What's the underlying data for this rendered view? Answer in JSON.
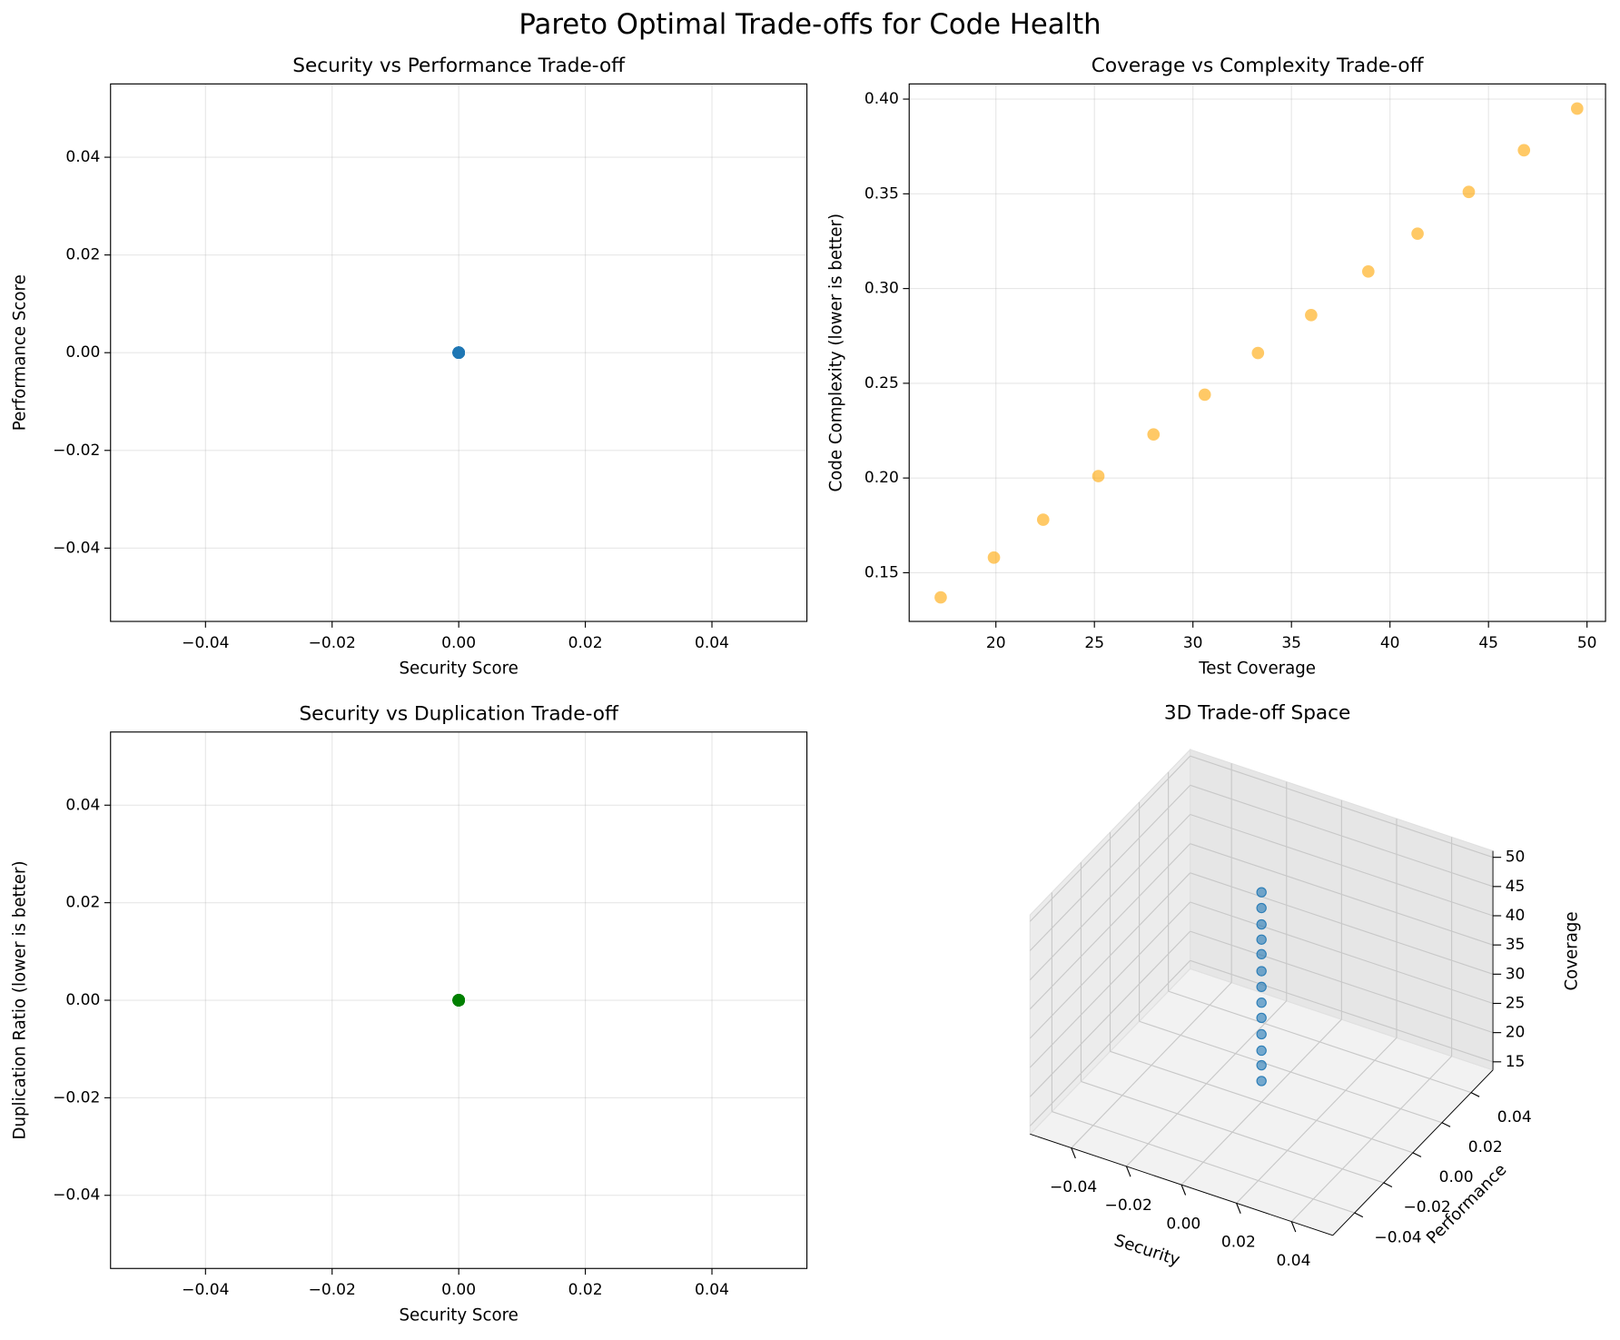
{
  "title": "Pareto Optimal Trade-offs for Code Health",
  "chart_data": [
    {
      "type": "scatter",
      "title": "Security vs Performance Trade-off",
      "xlabel": "Security Score",
      "ylabel": "Performance Score",
      "x": [
        0,
        0,
        0,
        0,
        0,
        0,
        0,
        0,
        0,
        0,
        0,
        0,
        0
      ],
      "values": [
        0,
        0,
        0,
        0,
        0,
        0,
        0,
        0,
        0,
        0,
        0,
        0,
        0
      ],
      "color": "#1f77b4",
      "alpha": 1,
      "grid": true,
      "xlim": [
        -0.055,
        0.055
      ],
      "ylim": [
        -0.055,
        0.055
      ],
      "xticks": [
        {
          "value": -0.04,
          "label": "−0.04"
        },
        {
          "value": -0.02,
          "label": "−0.02"
        },
        {
          "value": 0,
          "label": "0.00"
        },
        0.02,
        0.04
      ],
      "yticks": [
        {
          "value": -0.04,
          "label": "−0.04"
        },
        {
          "value": -0.02,
          "label": "−0.02"
        },
        {
          "value": 0,
          "label": "0.00"
        },
        0.02,
        0.04
      ]
    },
    {
      "type": "scatter",
      "title": "Coverage vs Complexity Trade-off",
      "xlabel": "Test Coverage",
      "ylabel": "Code Complexity (lower is better)",
      "x": [
        17.2,
        19.9,
        22.4,
        25.2,
        28.0,
        30.6,
        33.3,
        36.0,
        38.9,
        41.4,
        44.0,
        46.8,
        49.5
      ],
      "values": [
        0.137,
        0.158,
        0.178,
        0.201,
        0.223,
        0.244,
        0.266,
        0.286,
        0.309,
        0.329,
        0.351,
        0.373,
        0.395
      ],
      "color": "#ffa500",
      "alpha": 0.6,
      "grid": true,
      "xlim": [
        15.6,
        50.94
      ],
      "ylim": [
        0.1243,
        0.408
      ],
      "xticks": [
        20,
        25,
        30,
        35,
        40,
        45,
        50
      ],
      "yticks": [
        0.15,
        {
          "value": 0.2,
          "label": "0.20"
        },
        0.25,
        {
          "value": 0.3,
          "label": "0.30"
        },
        0.35,
        {
          "value": 0.4,
          "label": "0.40"
        }
      ]
    },
    {
      "type": "scatter",
      "title": "Security vs Duplication Trade-off",
      "xlabel": "Security Score",
      "ylabel": "Duplication Ratio (lower is better)",
      "x": [
        0,
        0,
        0,
        0,
        0,
        0,
        0,
        0,
        0,
        0,
        0,
        0,
        0
      ],
      "values": [
        0,
        0,
        0,
        0,
        0,
        0,
        0,
        0,
        0,
        0,
        0,
        0,
        0
      ],
      "color": "#008000",
      "alpha": 1,
      "grid": true,
      "xlim": [
        -0.055,
        0.055
      ],
      "ylim": [
        -0.055,
        0.055
      ],
      "xticks": [
        {
          "value": -0.04,
          "label": "−0.04"
        },
        {
          "value": -0.02,
          "label": "−0.02"
        },
        {
          "value": 0,
          "label": "0.00"
        },
        0.02,
        0.04
      ],
      "yticks": [
        {
          "value": -0.04,
          "label": "−0.04"
        },
        {
          "value": -0.02,
          "label": "−0.02"
        },
        {
          "value": 0,
          "label": "0.00"
        },
        0.02,
        0.04
      ]
    },
    {
      "type": "scatter3d",
      "title": "3D Trade-off Space",
      "xlabel": "Security",
      "ylabel": "Performance",
      "zlabel": "Coverage",
      "x": [
        0,
        0,
        0,
        0,
        0,
        0,
        0,
        0,
        0,
        0,
        0,
        0,
        0
      ],
      "y": [
        0,
        0,
        0,
        0,
        0,
        0,
        0,
        0,
        0,
        0,
        0,
        0,
        0
      ],
      "z": [
        17.2,
        19.9,
        22.4,
        25.2,
        28.0,
        30.6,
        33.3,
        36.0,
        38.9,
        41.4,
        44.0,
        46.8,
        49.5
      ],
      "color": "#1f77b4",
      "alpha": 0.6,
      "grid": true,
      "xlim": [
        -0.055,
        0.055
      ],
      "ylim": [
        -0.055,
        0.055
      ],
      "zlim": [
        13.6,
        51.1
      ],
      "xticks": [
        {
          "value": -0.04,
          "label": "−0.04"
        },
        {
          "value": -0.02,
          "label": "−0.02"
        },
        {
          "value": 0,
          "label": "0.00"
        },
        0.02,
        0.04
      ],
      "yticks": [
        {
          "value": -0.04,
          "label": "−0.04"
        },
        {
          "value": -0.02,
          "label": "−0.02"
        },
        {
          "value": 0,
          "label": "0.00"
        },
        0.02,
        0.04
      ],
      "zticks": [
        15,
        20,
        25,
        30,
        35,
        40,
        45,
        50
      ]
    }
  ]
}
